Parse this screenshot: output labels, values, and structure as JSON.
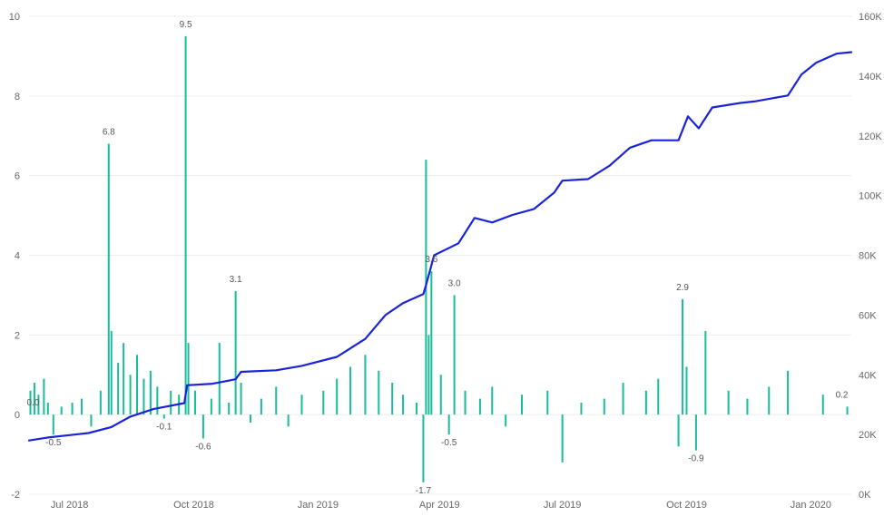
{
  "chart_data": {
    "type": "bar+line",
    "x_start": "2018-06-01",
    "x_end": "2020-01-31",
    "x_tick_labels": [
      {
        "date": "2018-07-01",
        "label": "Jul 2018"
      },
      {
        "date": "2018-10-01",
        "label": "Oct 2018"
      },
      {
        "date": "2019-01-01",
        "label": "Jan 2019"
      },
      {
        "date": "2019-04-01",
        "label": "Apr 2019"
      },
      {
        "date": "2019-07-01",
        "label": "Jul 2019"
      },
      {
        "date": "2019-10-01",
        "label": "Oct 2019"
      },
      {
        "date": "2020-01-01",
        "label": "Jan 2020"
      }
    ],
    "left_axis": {
      "range": [
        -2,
        10
      ],
      "ticks": [
        -2,
        0,
        2,
        4,
        6,
        8,
        10
      ],
      "tick_labels": [
        "-2",
        "0",
        "2",
        "4",
        "6",
        "8",
        "10"
      ]
    },
    "right_axis": {
      "range": [
        0,
        160000
      ],
      "ticks": [
        0,
        20000,
        40000,
        60000,
        80000,
        100000,
        120000,
        140000,
        160000
      ],
      "tick_labels": [
        "0K",
        "20K",
        "40K",
        "60K",
        "80K",
        "100K",
        "120K",
        "140K",
        "160K"
      ]
    },
    "grid": true,
    "bar_color": "#1ABC9C",
    "line_color": "#1A24D6",
    "bar_series_sample": [
      {
        "date": "2018-06-02",
        "value": 0.6
      },
      {
        "date": "2018-06-05",
        "value": 0.8
      },
      {
        "date": "2018-06-08",
        "value": 0.5
      },
      {
        "date": "2018-06-12",
        "value": 0.9
      },
      {
        "date": "2018-06-15",
        "value": 0.3
      },
      {
        "date": "2018-06-19",
        "value": -0.5
      },
      {
        "date": "2018-06-25",
        "value": 0.2
      },
      {
        "date": "2018-07-03",
        "value": 0.3
      },
      {
        "date": "2018-07-10",
        "value": 0.4
      },
      {
        "date": "2018-07-17",
        "value": -0.3
      },
      {
        "date": "2018-07-24",
        "value": 0.6
      },
      {
        "date": "2018-07-30",
        "value": 6.8
      },
      {
        "date": "2018-08-01",
        "value": 2.1
      },
      {
        "date": "2018-08-06",
        "value": 1.3
      },
      {
        "date": "2018-08-10",
        "value": 1.8
      },
      {
        "date": "2018-08-15",
        "value": 1.0
      },
      {
        "date": "2018-08-20",
        "value": 1.5
      },
      {
        "date": "2018-08-25",
        "value": 0.9
      },
      {
        "date": "2018-08-30",
        "value": 1.1
      },
      {
        "date": "2018-09-04",
        "value": 0.7
      },
      {
        "date": "2018-09-09",
        "value": -0.1
      },
      {
        "date": "2018-09-14",
        "value": 0.6
      },
      {
        "date": "2018-09-20",
        "value": 0.5
      },
      {
        "date": "2018-09-25",
        "value": 9.5
      },
      {
        "date": "2018-09-27",
        "value": 1.8
      },
      {
        "date": "2018-10-02",
        "value": 0.6
      },
      {
        "date": "2018-10-08",
        "value": -0.6
      },
      {
        "date": "2018-10-14",
        "value": 0.4
      },
      {
        "date": "2018-10-20",
        "value": 1.8
      },
      {
        "date": "2018-10-27",
        "value": 0.3
      },
      {
        "date": "2018-11-01",
        "value": 3.1
      },
      {
        "date": "2018-11-05",
        "value": 0.8
      },
      {
        "date": "2018-11-12",
        "value": -0.2
      },
      {
        "date": "2018-11-20",
        "value": 0.4
      },
      {
        "date": "2018-12-01",
        "value": 0.7
      },
      {
        "date": "2018-12-10",
        "value": -0.3
      },
      {
        "date": "2018-12-20",
        "value": 0.5
      },
      {
        "date": "2019-01-05",
        "value": 0.6
      },
      {
        "date": "2019-01-15",
        "value": 0.9
      },
      {
        "date": "2019-01-25",
        "value": 1.2
      },
      {
        "date": "2019-02-05",
        "value": 1.5
      },
      {
        "date": "2019-02-15",
        "value": 1.1
      },
      {
        "date": "2019-02-25",
        "value": 0.8
      },
      {
        "date": "2019-03-05",
        "value": 0.5
      },
      {
        "date": "2019-03-15",
        "value": 0.3
      },
      {
        "date": "2019-03-20",
        "value": -1.7
      },
      {
        "date": "2019-03-22",
        "value": 6.4
      },
      {
        "date": "2019-03-24",
        "value": 2.0
      },
      {
        "date": "2019-03-26",
        "value": 3.6
      },
      {
        "date": "2019-04-02",
        "value": 1.0
      },
      {
        "date": "2019-04-08",
        "value": -0.5
      },
      {
        "date": "2019-04-12",
        "value": 3.0
      },
      {
        "date": "2019-04-20",
        "value": 0.6
      },
      {
        "date": "2019-05-01",
        "value": 0.4
      },
      {
        "date": "2019-05-10",
        "value": 0.7
      },
      {
        "date": "2019-05-20",
        "value": -0.3
      },
      {
        "date": "2019-06-01",
        "value": 0.5
      },
      {
        "date": "2019-06-20",
        "value": 0.6
      },
      {
        "date": "2019-07-01",
        "value": -1.2
      },
      {
        "date": "2019-07-15",
        "value": 0.3
      },
      {
        "date": "2019-08-01",
        "value": 0.4
      },
      {
        "date": "2019-08-15",
        "value": 0.8
      },
      {
        "date": "2019-09-01",
        "value": 0.6
      },
      {
        "date": "2019-09-10",
        "value": 0.9
      },
      {
        "date": "2019-09-25",
        "value": -0.8
      },
      {
        "date": "2019-09-28",
        "value": 2.9
      },
      {
        "date": "2019-10-01",
        "value": 1.2
      },
      {
        "date": "2019-10-08",
        "value": -0.9
      },
      {
        "date": "2019-10-15",
        "value": 2.1
      },
      {
        "date": "2019-11-01",
        "value": 0.6
      },
      {
        "date": "2019-11-15",
        "value": 0.4
      },
      {
        "date": "2019-12-01",
        "value": 0.7
      },
      {
        "date": "2019-12-15",
        "value": 1.1
      },
      {
        "date": "2020-01-10",
        "value": 0.5
      },
      {
        "date": "2020-01-28",
        "value": 0.2
      }
    ],
    "line_series": [
      {
        "date": "2018-06-01",
        "value": 18000
      },
      {
        "date": "2018-06-15",
        "value": 19000
      },
      {
        "date": "2018-07-01",
        "value": 19800
      },
      {
        "date": "2018-07-15",
        "value": 20500
      },
      {
        "date": "2018-08-01",
        "value": 22500
      },
      {
        "date": "2018-08-15",
        "value": 26000
      },
      {
        "date": "2018-09-01",
        "value": 28500
      },
      {
        "date": "2018-09-24",
        "value": 30500
      },
      {
        "date": "2018-09-26",
        "value": 36500
      },
      {
        "date": "2018-10-15",
        "value": 37000
      },
      {
        "date": "2018-11-01",
        "value": 38500
      },
      {
        "date": "2018-11-05",
        "value": 41000
      },
      {
        "date": "2018-12-01",
        "value": 41500
      },
      {
        "date": "2018-12-20",
        "value": 43000
      },
      {
        "date": "2019-01-15",
        "value": 46000
      },
      {
        "date": "2019-02-05",
        "value": 52000
      },
      {
        "date": "2019-02-20",
        "value": 60000
      },
      {
        "date": "2019-03-05",
        "value": 64000
      },
      {
        "date": "2019-03-20",
        "value": 67000
      },
      {
        "date": "2019-03-22",
        "value": 70000
      },
      {
        "date": "2019-03-28",
        "value": 80000
      },
      {
        "date": "2019-04-15",
        "value": 84000
      },
      {
        "date": "2019-04-27",
        "value": 92500
      },
      {
        "date": "2019-05-10",
        "value": 91000
      },
      {
        "date": "2019-05-25",
        "value": 93500
      },
      {
        "date": "2019-06-10",
        "value": 95500
      },
      {
        "date": "2019-06-25",
        "value": 101000
      },
      {
        "date": "2019-07-01",
        "value": 105000
      },
      {
        "date": "2019-07-20",
        "value": 105500
      },
      {
        "date": "2019-08-05",
        "value": 110000
      },
      {
        "date": "2019-08-20",
        "value": 116000
      },
      {
        "date": "2019-09-05",
        "value": 118500
      },
      {
        "date": "2019-09-25",
        "value": 118500
      },
      {
        "date": "2019-10-02",
        "value": 126500
      },
      {
        "date": "2019-10-10",
        "value": 122500
      },
      {
        "date": "2019-10-20",
        "value": 129500
      },
      {
        "date": "2019-11-10",
        "value": 131000
      },
      {
        "date": "2019-11-20",
        "value": 131500
      },
      {
        "date": "2019-12-15",
        "value": 133500
      },
      {
        "date": "2019-12-25",
        "value": 140500
      },
      {
        "date": "2020-01-05",
        "value": 144500
      },
      {
        "date": "2020-01-20",
        "value": 147500
      },
      {
        "date": "2020-01-31",
        "value": 148000
      }
    ],
    "data_labels": [
      {
        "date": "2018-06-04",
        "value": 0.0,
        "text": "0.0",
        "dx": 0,
        "dy": -10
      },
      {
        "date": "2018-06-19",
        "value": -0.5,
        "text": "-0.5",
        "dx": 0,
        "dy": 12
      },
      {
        "date": "2018-07-30",
        "value": 6.8,
        "text": "6.8",
        "dx": 0,
        "dy": -10
      },
      {
        "date": "2018-09-09",
        "value": -0.1,
        "text": "-0.1",
        "dx": 0,
        "dy": 12
      },
      {
        "date": "2018-09-25",
        "value": 9.5,
        "text": "9.5",
        "dx": 0,
        "dy": -10
      },
      {
        "date": "2018-10-08",
        "value": -0.6,
        "text": "-0.6",
        "dx": 0,
        "dy": 12
      },
      {
        "date": "2018-11-01",
        "value": 3.1,
        "text": "3.1",
        "dx": 0,
        "dy": -10
      },
      {
        "date": "2019-03-20",
        "value": -1.7,
        "text": "-1.7",
        "dx": 0,
        "dy": 12
      },
      {
        "date": "2019-03-26",
        "value": 3.6,
        "text": "3.6",
        "dx": 0,
        "dy": -10
      },
      {
        "date": "2019-04-08",
        "value": -0.5,
        "text": "-0.5",
        "dx": 0,
        "dy": 12
      },
      {
        "date": "2019-04-12",
        "value": 3.0,
        "text": "3.0",
        "dx": 0,
        "dy": -10
      },
      {
        "date": "2019-09-28",
        "value": 2.9,
        "text": "2.9",
        "dx": 0,
        "dy": -10
      },
      {
        "date": "2019-10-08",
        "value": -0.9,
        "text": "-0.9",
        "dx": 0,
        "dy": 12
      },
      {
        "date": "2020-01-28",
        "value": 0.2,
        "text": "0.2",
        "dx": -6,
        "dy": -10
      }
    ]
  }
}
